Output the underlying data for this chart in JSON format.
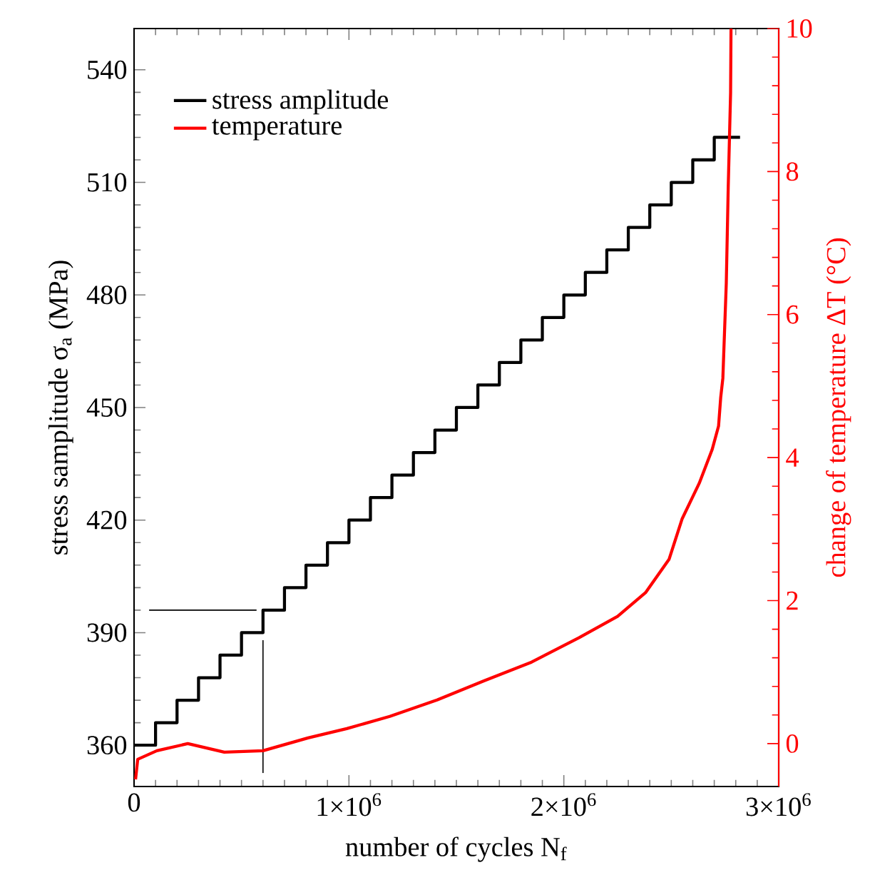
{
  "chart_data": {
    "type": "line",
    "xlabel": "number of cycles N$_{f}$",
    "ylabel": "stress samplitude σ$_{a}$ (MPa)",
    "y2label": "change of temperature ΔT (°C)",
    "xlim": [
      0,
      3000000
    ],
    "ylim": [
      349,
      551
    ],
    "y2lim": [
      -0.6,
      10
    ],
    "xticks": [
      0,
      {
        "value": 1000000,
        "label": "1×10$^{6}$"
      },
      {
        "value": 2000000,
        "label": "2×10$^{6}$"
      },
      {
        "value": 3000000,
        "label": "3×10$^{6}$"
      }
    ],
    "yticks": [
      360,
      390,
      420,
      450,
      480,
      510,
      540
    ],
    "y2ticks": [
      0,
      2,
      4,
      6,
      8,
      10
    ],
    "grid": false,
    "legend": "top left",
    "marker": "none",
    "line_style": "solid",
    "series": [
      {
        "name": "stress amplitude",
        "type": "step",
        "color": "#000000",
        "x": [
          0,
          100000,
          200000,
          300000,
          400000,
          500000,
          600000,
          700000,
          800000,
          900000,
          1000000,
          1100000,
          1200000,
          1300000,
          1400000,
          1500000,
          1600000,
          1700000,
          1800000,
          1900000,
          2000000,
          2100000,
          2200000,
          2300000,
          2400000,
          2500000,
          2600000,
          2700000,
          2820000
        ],
        "values": [
          360,
          366,
          372,
          378,
          384,
          390,
          396,
          402,
          408,
          414,
          420,
          426,
          432,
          438,
          444,
          450,
          456,
          462,
          468,
          474,
          480,
          486,
          492,
          498,
          504,
          510,
          516,
          522,
          522
        ]
      },
      {
        "name": "temperature",
        "type": "line",
        "axis": "y2",
        "color": "#ff0000",
        "x": [
          7000,
          17000,
          106000,
          250000,
          420000,
          600000,
          810000,
          990000,
          1190000,
          1410000,
          1630000,
          1850000,
          2070000,
          2250000,
          2380000,
          2490000,
          2550000,
          2630000,
          2690000,
          2720000,
          2730000,
          2740000,
          2756000,
          2765000,
          2776000,
          2778000
        ],
        "values": [
          -0.5,
          -0.22,
          -0.1,
          0.0,
          -0.12,
          -0.1,
          0.08,
          0.21,
          0.38,
          0.61,
          0.88,
          1.14,
          1.48,
          1.78,
          2.11,
          2.58,
          3.14,
          3.64,
          4.11,
          4.44,
          4.84,
          5.11,
          6.44,
          7.78,
          9.1,
          10.0
        ]
      },
      {
        "type": "line",
        "color": "#000000",
        "x": [
          70000,
          570000
        ],
        "values": [
          396,
          396
        ]
      },
      {
        "type": "line",
        "color": "#000000",
        "x": [
          600000,
          600000
        ],
        "values": [
          388,
          352.6
        ]
      }
    ]
  }
}
